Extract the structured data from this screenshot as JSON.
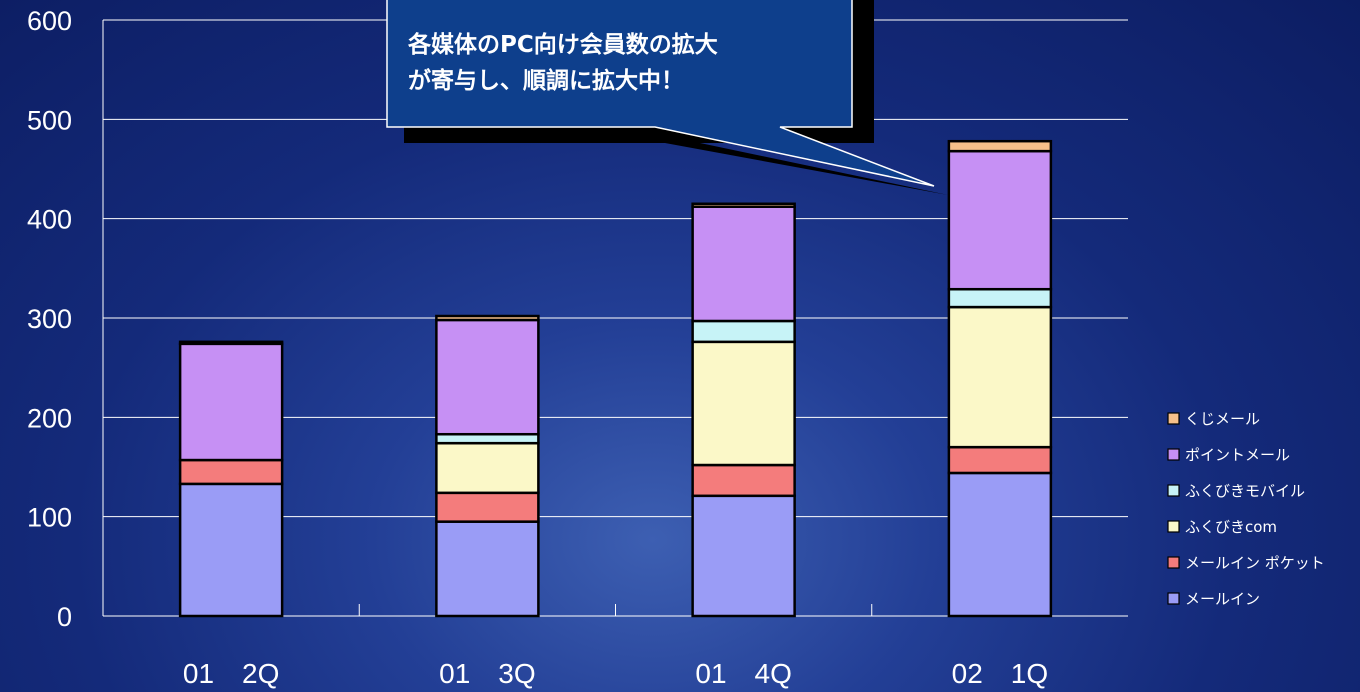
{
  "colors": {
    "メールイン": "#9a9cf6",
    "メールインポケット": "#f47c7c",
    "ふくびきcom": "#fbf8c8",
    "ふくびきモバイル": "#c7f3f7",
    "ポイントメール": "#c690f4",
    "くじメール": "#f6c08a",
    "callout_fill": "#0e3f8c",
    "callout_border": "#ffffff",
    "grid": "#ffffff"
  },
  "chart_data": {
    "type": "bar",
    "stacked": true,
    "categories": [
      "01　2Q",
      "01　3Q",
      "01　4Q",
      "02　1Q"
    ],
    "ylim": [
      0,
      600
    ],
    "yticks": [
      0,
      100,
      200,
      300,
      400,
      500,
      600
    ],
    "grid": true,
    "legend_position": "right",
    "series": [
      {
        "name": "メールイン",
        "values": [
          133,
          95,
          121,
          144
        ]
      },
      {
        "name": "メールイン ポケット",
        "values": [
          24,
          29,
          31,
          26
        ]
      },
      {
        "name": "ふくびきcom",
        "values": [
          0,
          50,
          124,
          141
        ]
      },
      {
        "name": "ふくびきモバイル",
        "values": [
          0,
          9,
          21,
          18
        ]
      },
      {
        "name": "ポイントメール",
        "values": [
          117,
          115,
          115,
          139
        ]
      },
      {
        "name": "くじメール",
        "values": [
          2,
          4,
          3,
          10
        ]
      }
    ],
    "annotation": {
      "line1": "各媒体のPC向け会員数の拡大",
      "line2": "が寄与し、順調に拡大中！"
    }
  }
}
